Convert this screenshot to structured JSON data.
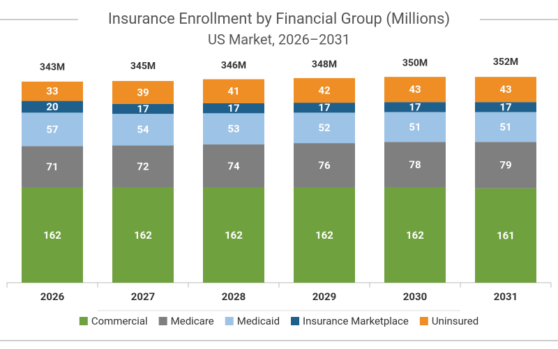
{
  "chart_data": {
    "type": "stacked-bar",
    "title": "Insurance Enrollment by Financial Group (Millions)",
    "subtitle": "US Market, 2026–2031",
    "categories": [
      "2026",
      "2027",
      "2028",
      "2029",
      "2030",
      "2031"
    ],
    "series": [
      {
        "name": "Commercial",
        "color": "#70a13f",
        "values": [
          162,
          162,
          162,
          162,
          162,
          161
        ]
      },
      {
        "name": "Medicare",
        "color": "#7f7f7f",
        "values": [
          71,
          72,
          74,
          76,
          78,
          79
        ]
      },
      {
        "name": "Medicaid",
        "color": "#9dc3e6",
        "values": [
          57,
          54,
          53,
          52,
          51,
          51
        ]
      },
      {
        "name": "Insurance Marketplace",
        "color": "#1f5f8c",
        "values": [
          20,
          17,
          17,
          17,
          17,
          17
        ]
      },
      {
        "name": "Uninsured",
        "color": "#ee8e25",
        "values": [
          33,
          39,
          41,
          42,
          43,
          43
        ]
      }
    ],
    "totals": {
      "values": [
        343,
        345,
        346,
        348,
        350,
        352
      ],
      "value_labels": [
        "343M",
        "345M",
        "346M",
        "348M",
        "350M",
        "352M"
      ]
    },
    "legend": "bottom"
  }
}
